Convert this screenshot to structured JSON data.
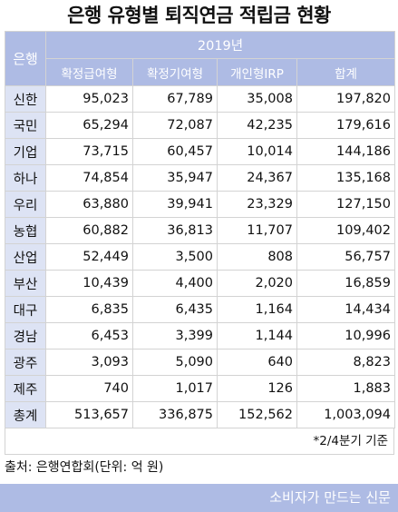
{
  "title": "은행 유형별 퇴직연금 적립금 현황",
  "table": {
    "bank_header": "은행",
    "year": "2019년",
    "columns": [
      "확정급여형",
      "확정기여형",
      "개인형IRP",
      "합계"
    ],
    "rows": [
      {
        "bank": "신한",
        "db": "95,023",
        "dc": "67,789",
        "irp": "35,008",
        "total": "197,820"
      },
      {
        "bank": "국민",
        "db": "65,294",
        "dc": "72,087",
        "irp": "42,235",
        "total": "179,616"
      },
      {
        "bank": "기업",
        "db": "73,715",
        "dc": "60,457",
        "irp": "10,014",
        "total": "144,186"
      },
      {
        "bank": "하나",
        "db": "74,854",
        "dc": "35,947",
        "irp": "24,367",
        "total": "135,168"
      },
      {
        "bank": "우리",
        "db": "63,880",
        "dc": "39,941",
        "irp": "23,329",
        "total": "127,150"
      },
      {
        "bank": "농협",
        "db": "60,882",
        "dc": "36,813",
        "irp": "11,707",
        "total": "109,402"
      },
      {
        "bank": "산업",
        "db": "52,449",
        "dc": "3,500",
        "irp": "808",
        "total": "56,757"
      },
      {
        "bank": "부산",
        "db": "10,439",
        "dc": "4,400",
        "irp": "2,020",
        "total": "16,859"
      },
      {
        "bank": "대구",
        "db": "6,835",
        "dc": "6,435",
        "irp": "1,164",
        "total": "14,434"
      },
      {
        "bank": "경남",
        "db": "6,453",
        "dc": "3,399",
        "irp": "1,144",
        "total": "10,996"
      },
      {
        "bank": "광주",
        "db": "3,093",
        "dc": "5,090",
        "irp": "640",
        "total": "8,823"
      },
      {
        "bank": "제주",
        "db": "740",
        "dc": "1,017",
        "irp": "126",
        "total": "1,883"
      },
      {
        "bank": "총계",
        "db": "513,657",
        "dc": "336,875",
        "irp": "152,562",
        "total": "1,003,094"
      }
    ]
  },
  "note": "*2/4분기 기준",
  "source": "출처: 은행연합회(단위: 억 원)",
  "footer": "소비자가 만드는 신문",
  "colors": {
    "header_bg": "#aebbe4",
    "label_bg": "#dde3f4",
    "border": "#d3d3d3"
  }
}
